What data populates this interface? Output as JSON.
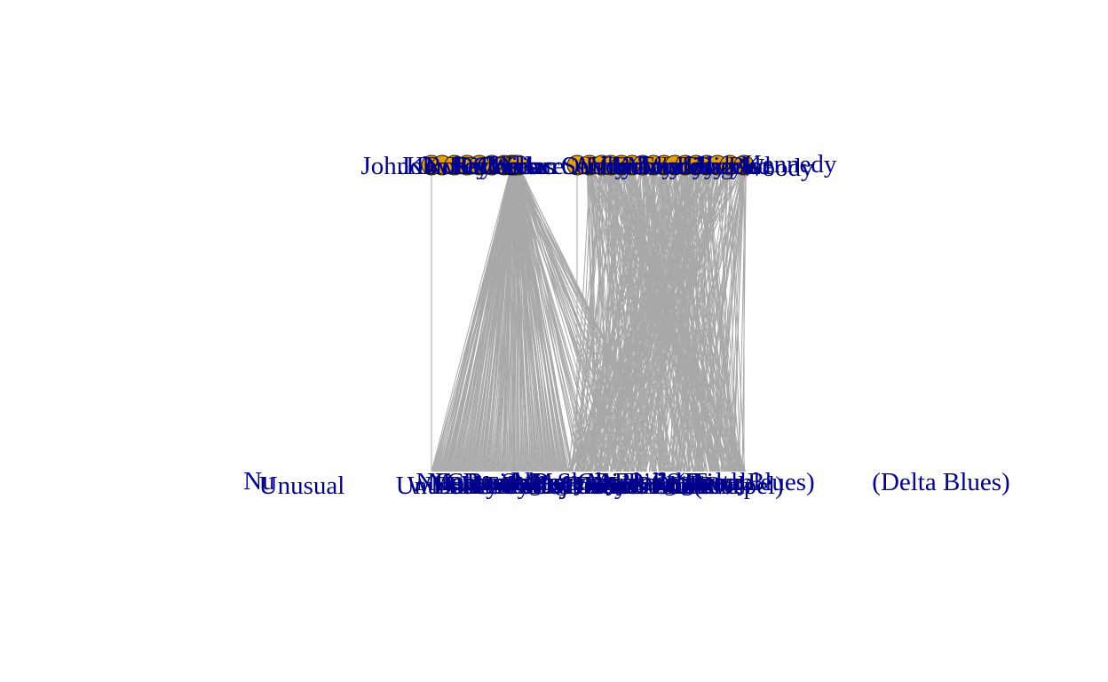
{
  "colors": {
    "background": "#ffffff",
    "edge": "#a8a8a8",
    "label": "#00008b",
    "node_fill": "#e3a00b",
    "node_stroke": "#111111"
  },
  "top_labels": [
    "John D",
    "Kowrey",
    "Robert",
    "Ray",
    "Harold",
    "Gilbert",
    "Louis",
    "Charles",
    "Clarence",
    "Oscar",
    "Wilbur",
    "Otis",
    "Sonny",
    "Arthur",
    "Lloyd",
    "Vernon",
    "Hadley",
    "Bobby",
    "Kennedy",
    "Maurice",
    "Woody",
    "Tennessee",
    "Lilly",
    "Lindy",
    "Donald",
    "Big Joe",
    "Bud"
  ],
  "top_visible_text": [
    "John D",
    "Kennedy",
    "Woody"
  ],
  "bottom_labels": [
    "Nu",
    "Unusual",
    "Mo",
    "Whiskey",
    "Corn",
    "Dance",
    "Lament",
    "Ballad",
    "Cocaine",
    "Honey",
    "Ramble",
    "Train",
    "Rambling",
    "Roll",
    "Sugar",
    "Lucky",
    "Mama",
    "Mojo",
    "Pony",
    "Dallas",
    "Mercury",
    "Crossroads",
    "Shake",
    "Fancy",
    "Grey",
    "Dream",
    "Bird",
    "Minor",
    "Morning",
    "Lonesome",
    "Bottle",
    "Moonshine",
    "Hollow",
    "Pistol",
    "Rainbow",
    "Slide",
    "Engine",
    "Cabin",
    "Station",
    "Gravel",
    "Ready",
    "Fever",
    "Trouble",
    "(Gospel)",
    "(Delta Blues)"
  ],
  "bottom_visible_text": [
    "Nu",
    "Unusual",
    "(Delta Blues)"
  ]
}
